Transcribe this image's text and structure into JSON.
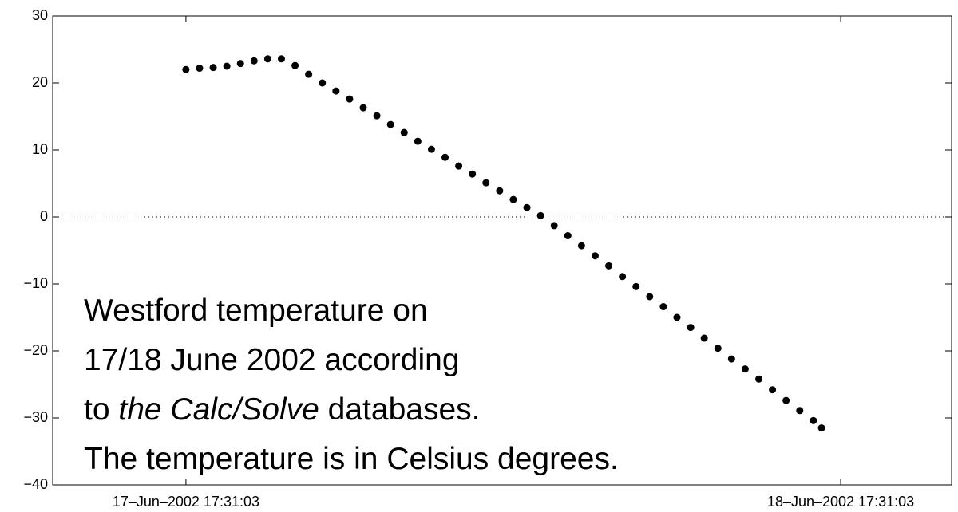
{
  "chart_data": {
    "type": "scatter",
    "x": [
      "2002-06-17T17:31",
      "2002-06-17T18:01",
      "2002-06-17T18:31",
      "2002-06-17T19:01",
      "2002-06-17T19:31",
      "2002-06-17T20:01",
      "2002-06-17T20:31",
      "2002-06-17T21:01",
      "2002-06-17T21:31",
      "2002-06-17T22:01",
      "2002-06-17T22:31",
      "2002-06-17T23:01",
      "2002-06-17T23:31",
      "2002-06-18T00:01",
      "2002-06-18T00:31",
      "2002-06-18T01:01",
      "2002-06-18T01:31",
      "2002-06-18T02:01",
      "2002-06-18T02:31",
      "2002-06-18T03:01",
      "2002-06-18T03:31",
      "2002-06-18T04:01",
      "2002-06-18T04:31",
      "2002-06-18T05:01",
      "2002-06-18T05:31",
      "2002-06-18T06:01",
      "2002-06-18T06:31",
      "2002-06-18T07:01",
      "2002-06-18T07:31",
      "2002-06-18T08:01",
      "2002-06-18T08:31",
      "2002-06-18T09:01",
      "2002-06-18T09:31",
      "2002-06-18T10:01",
      "2002-06-18T10:31",
      "2002-06-18T11:01",
      "2002-06-18T11:31",
      "2002-06-18T12:01",
      "2002-06-18T12:31",
      "2002-06-18T13:01",
      "2002-06-18T13:31",
      "2002-06-18T14:01",
      "2002-06-18T14:31",
      "2002-06-18T15:01",
      "2002-06-18T15:31",
      "2002-06-18T16:01",
      "2002-06-18T16:31",
      "2002-06-18T16:49"
    ],
    "values": [
      22.0,
      22.2,
      22.3,
      22.5,
      22.9,
      23.3,
      23.6,
      23.6,
      22.6,
      21.3,
      20.0,
      18.8,
      17.6,
      16.3,
      15.1,
      13.8,
      12.6,
      11.3,
      10.1,
      8.9,
      7.6,
      6.4,
      5.1,
      3.9,
      2.6,
      1.4,
      0.2,
      -1.3,
      -2.8,
      -4.3,
      -5.8,
      -7.3,
      -8.9,
      -10.4,
      -11.9,
      -13.4,
      -15.0,
      -16.5,
      -18.1,
      -19.6,
      -21.2,
      -22.7,
      -24.2,
      -25.8,
      -27.4,
      -28.9,
      -30.4,
      -31.5
    ],
    "color": "#000000",
    "xlim": [
      "2002-06-17T12:38:00",
      "2002-06-18T21:35:00"
    ],
    "xticks": [
      {
        "value": "2002-06-17T17:31:03",
        "label": "17–Jun–2002 17:31:03"
      },
      {
        "value": "2002-06-18T17:31:03",
        "label": "18–Jun–2002 17:31:03"
      }
    ],
    "ylim": [
      -40,
      30
    ],
    "yticks": [
      {
        "value": -40,
        "label": "−40"
      },
      {
        "value": -30,
        "label": "−30"
      },
      {
        "value": -20,
        "label": "−20"
      },
      {
        "value": -10,
        "label": "−10"
      },
      0,
      10,
      20,
      30
    ],
    "zero_line": true,
    "annotation": [
      [
        {
          "text": "Westford temperature on"
        }
      ],
      [
        {
          "text": "17/18 June 2002 according"
        }
      ],
      [
        {
          "text": "to "
        },
        {
          "text": "the Calc/Solve",
          "italic": true
        },
        {
          "text": " databases."
        }
      ],
      [
        {
          "text": "The temperature is in Celsius degrees."
        }
      ]
    ]
  }
}
